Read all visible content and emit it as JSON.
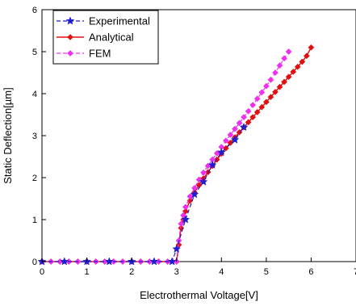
{
  "chart_data": {
    "type": "line",
    "xlabel": "Electrothermal Voltage[V]",
    "ylabel": "Static Deflection[µm]",
    "xlim": [
      0,
      7
    ],
    "ylim": [
      0,
      6
    ],
    "xticks": [
      "0",
      "1",
      "2",
      "3",
      "4",
      "5",
      "6",
      "7"
    ],
    "yticks": [
      "0",
      "1",
      "2",
      "3",
      "4",
      "5",
      "6"
    ],
    "grid": false,
    "legend_position": "top-left",
    "series": [
      {
        "name": "Experimental",
        "color": "#1f1fcc",
        "marker": "star",
        "x": [
          0,
          0.5,
          1.0,
          1.5,
          2.0,
          2.5,
          2.9,
          3.0,
          3.2,
          3.4,
          3.6,
          3.8,
          4.0,
          4.3,
          4.5
        ],
        "y": [
          0,
          0,
          0,
          0,
          0,
          0,
          0,
          0.3,
          1.0,
          1.6,
          1.9,
          2.3,
          2.6,
          2.9,
          3.2
        ]
      },
      {
        "name": "Analytical",
        "color": "#e01010",
        "marker": "diamond",
        "x": [
          0,
          0.2,
          0.4,
          0.6,
          0.8,
          1.0,
          1.2,
          1.4,
          1.6,
          1.8,
          2.0,
          2.2,
          2.4,
          2.6,
          2.8,
          3.0,
          3.05,
          3.1,
          3.15,
          3.2,
          3.3,
          3.4,
          3.5,
          3.6,
          3.7,
          3.8,
          3.9,
          4.0,
          4.1,
          4.2,
          4.3,
          4.4,
          4.5,
          4.6,
          4.7,
          4.8,
          4.9,
          5.0,
          5.1,
          5.2,
          5.3,
          5.4,
          5.5,
          5.6,
          5.7,
          5.8,
          5.9,
          6.0
        ],
        "y": [
          0,
          0,
          0,
          0,
          0,
          0,
          0,
          0,
          0,
          0,
          0,
          0,
          0,
          0,
          0,
          0,
          0.4,
          0.8,
          1.0,
          1.2,
          1.45,
          1.65,
          1.82,
          1.98,
          2.13,
          2.28,
          2.43,
          2.57,
          2.7,
          2.83,
          2.96,
          3.08,
          3.2,
          3.32,
          3.44,
          3.56,
          3.68,
          3.8,
          3.92,
          4.04,
          4.16,
          4.28,
          4.4,
          4.52,
          4.64,
          4.76,
          4.9,
          5.1
        ]
      },
      {
        "name": "FEM",
        "color": "#ee30ee",
        "marker": "diamond",
        "x": [
          0,
          0.2,
          0.4,
          0.6,
          0.8,
          1.0,
          1.2,
          1.4,
          1.6,
          1.8,
          2.0,
          2.2,
          2.4,
          2.6,
          2.8,
          3.0,
          3.05,
          3.1,
          3.15,
          3.2,
          3.3,
          3.4,
          3.5,
          3.6,
          3.7,
          3.8,
          3.9,
          4.0,
          4.1,
          4.2,
          4.3,
          4.4,
          4.5,
          4.6,
          4.7,
          4.8,
          4.9,
          5.0,
          5.1,
          5.2,
          5.3,
          5.4,
          5.5
        ],
        "y": [
          0,
          0,
          0,
          0,
          0,
          0,
          0,
          0,
          0,
          0,
          0,
          0,
          0,
          0,
          0,
          0,
          0.5,
          0.9,
          1.1,
          1.3,
          1.55,
          1.75,
          1.95,
          2.12,
          2.28,
          2.43,
          2.58,
          2.73,
          2.88,
          3.02,
          3.16,
          3.3,
          3.44,
          3.58,
          3.73,
          3.88,
          4.03,
          4.18,
          4.33,
          4.5,
          4.67,
          4.84,
          5.0
        ]
      }
    ]
  }
}
